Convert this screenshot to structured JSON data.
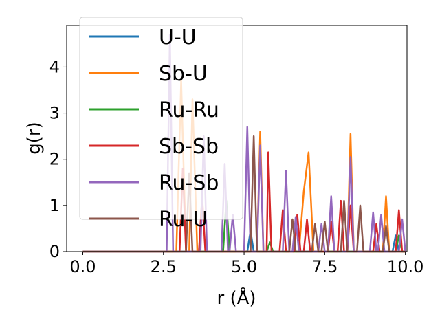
{
  "chart_data": {
    "type": "line",
    "title": "",
    "xlabel": "r (Å)",
    "ylabel": "g(r)",
    "xlim": [
      -0.5,
      10.05
    ],
    "ylim": [
      0,
      4.9
    ],
    "xticks": [
      0.0,
      2.5,
      5.0,
      7.5,
      10.0
    ],
    "xtick_labels": [
      "0.0",
      "2.5",
      "5.0",
      "7.5",
      "10.0"
    ],
    "yticks": [
      0,
      1,
      2,
      3,
      4
    ],
    "ytick_labels": [
      "0",
      "1",
      "2",
      "3",
      "4"
    ],
    "grid": false,
    "legend_position": "upper-left",
    "series": [
      {
        "name": "U-U",
        "color": "#1f77b4",
        "points": [
          [
            0.0,
            0
          ],
          [
            5.1,
            0
          ],
          [
            5.2,
            0.45
          ],
          [
            5.3,
            0
          ],
          [
            9.6,
            0
          ],
          [
            9.7,
            0.35
          ],
          [
            9.8,
            0
          ],
          [
            10.0,
            0
          ]
        ]
      },
      {
        "name": "Sb-U",
        "color": "#ff7f0e",
        "points": [
          [
            0.0,
            0
          ],
          [
            2.9,
            0
          ],
          [
            3.05,
            3.7
          ],
          [
            3.2,
            0
          ],
          [
            3.3,
            0
          ],
          [
            3.4,
            3.3
          ],
          [
            3.55,
            0
          ],
          [
            5.4,
            0
          ],
          [
            5.5,
            2.6
          ],
          [
            5.6,
            0
          ],
          [
            6.7,
            0
          ],
          [
            6.85,
            1.3
          ],
          [
            7.0,
            2.15
          ],
          [
            7.15,
            0
          ],
          [
            8.2,
            0
          ],
          [
            8.3,
            2.55
          ],
          [
            8.4,
            0
          ],
          [
            9.3,
            0
          ],
          [
            9.4,
            1.2
          ],
          [
            9.5,
            0
          ],
          [
            10.0,
            0
          ]
        ]
      },
      {
        "name": "Ru-Ru",
        "color": "#2ca02c",
        "points": [
          [
            0.0,
            0
          ],
          [
            4.35,
            0
          ],
          [
            4.45,
            1.1
          ],
          [
            4.55,
            0
          ],
          [
            5.7,
            0
          ],
          [
            5.8,
            0.2
          ],
          [
            5.9,
            0
          ],
          [
            9.7,
            0
          ],
          [
            9.8,
            0.35
          ],
          [
            9.9,
            0
          ],
          [
            10.0,
            0
          ]
        ]
      },
      {
        "name": "Sb-Sb",
        "color": "#d62728",
        "points": [
          [
            0.0,
            0
          ],
          [
            3.0,
            0
          ],
          [
            3.1,
            1.8
          ],
          [
            3.2,
            0
          ],
          [
            3.6,
            0
          ],
          [
            3.7,
            1.2
          ],
          [
            3.8,
            0
          ],
          [
            5.7,
            0
          ],
          [
            5.75,
            2.15
          ],
          [
            5.85,
            0
          ],
          [
            6.1,
            0
          ],
          [
            6.2,
            0.9
          ],
          [
            6.3,
            0
          ],
          [
            6.55,
            0
          ],
          [
            6.65,
            0.8
          ],
          [
            6.75,
            0
          ],
          [
            6.85,
            0
          ],
          [
            6.95,
            0.7
          ],
          [
            7.05,
            0
          ],
          [
            7.6,
            0
          ],
          [
            7.7,
            0.65
          ],
          [
            7.8,
            0
          ],
          [
            7.9,
            0
          ],
          [
            8.0,
            1.1
          ],
          [
            8.1,
            0
          ],
          [
            8.2,
            0
          ],
          [
            8.3,
            1.0
          ],
          [
            8.4,
            0
          ],
          [
            9.0,
            0
          ],
          [
            9.1,
            0.6
          ],
          [
            9.2,
            0
          ],
          [
            9.7,
            0
          ],
          [
            9.8,
            0.9
          ],
          [
            9.9,
            0
          ],
          [
            10.0,
            0
          ]
        ]
      },
      {
        "name": "Ru-Sb",
        "color": "#9467bd",
        "points": [
          [
            0.0,
            0
          ],
          [
            2.6,
            0
          ],
          [
            2.7,
            4.7
          ],
          [
            2.8,
            0
          ],
          [
            3.65,
            0
          ],
          [
            3.75,
            2.5
          ],
          [
            3.85,
            0
          ],
          [
            4.3,
            0
          ],
          [
            4.4,
            1.9
          ],
          [
            4.5,
            0
          ],
          [
            4.55,
            0
          ],
          [
            4.65,
            0.8
          ],
          [
            4.75,
            0
          ],
          [
            5.0,
            0
          ],
          [
            5.1,
            2.7
          ],
          [
            5.2,
            0
          ],
          [
            5.4,
            0
          ],
          [
            5.5,
            2.3
          ],
          [
            5.6,
            0
          ],
          [
            6.2,
            0
          ],
          [
            6.3,
            1.75
          ],
          [
            6.4,
            0
          ],
          [
            6.5,
            0
          ],
          [
            6.6,
            0.75
          ],
          [
            6.7,
            0
          ],
          [
            7.3,
            0
          ],
          [
            7.4,
            0.6
          ],
          [
            7.5,
            0
          ],
          [
            7.6,
            0
          ],
          [
            7.7,
            1.2
          ],
          [
            7.8,
            0
          ],
          [
            8.2,
            0
          ],
          [
            8.3,
            2.05
          ],
          [
            8.4,
            0
          ],
          [
            8.9,
            0
          ],
          [
            9.0,
            0.85
          ],
          [
            9.1,
            0
          ],
          [
            9.15,
            0
          ],
          [
            9.25,
            0.8
          ],
          [
            9.35,
            0
          ],
          [
            9.8,
            0
          ],
          [
            9.9,
            0.7
          ],
          [
            10.0,
            0
          ]
        ]
      },
      {
        "name": "Ru-U",
        "color": "#8c564b",
        "points": [
          [
            0.0,
            0
          ],
          [
            3.2,
            0
          ],
          [
            3.3,
            1.7
          ],
          [
            3.4,
            0
          ],
          [
            5.2,
            0
          ],
          [
            5.3,
            2.5
          ],
          [
            5.4,
            0
          ],
          [
            6.4,
            0
          ],
          [
            6.5,
            0.7
          ],
          [
            6.6,
            0
          ],
          [
            7.1,
            0
          ],
          [
            7.2,
            0.6
          ],
          [
            7.3,
            0
          ],
          [
            7.4,
            0
          ],
          [
            7.5,
            0.65
          ],
          [
            7.6,
            0
          ],
          [
            8.0,
            0
          ],
          [
            8.1,
            1.1
          ],
          [
            8.2,
            0
          ],
          [
            8.5,
            0
          ],
          [
            8.6,
            1.0
          ],
          [
            8.7,
            0
          ],
          [
            9.3,
            0
          ],
          [
            9.4,
            0.55
          ],
          [
            9.5,
            0
          ],
          [
            10.0,
            0
          ]
        ]
      }
    ]
  }
}
